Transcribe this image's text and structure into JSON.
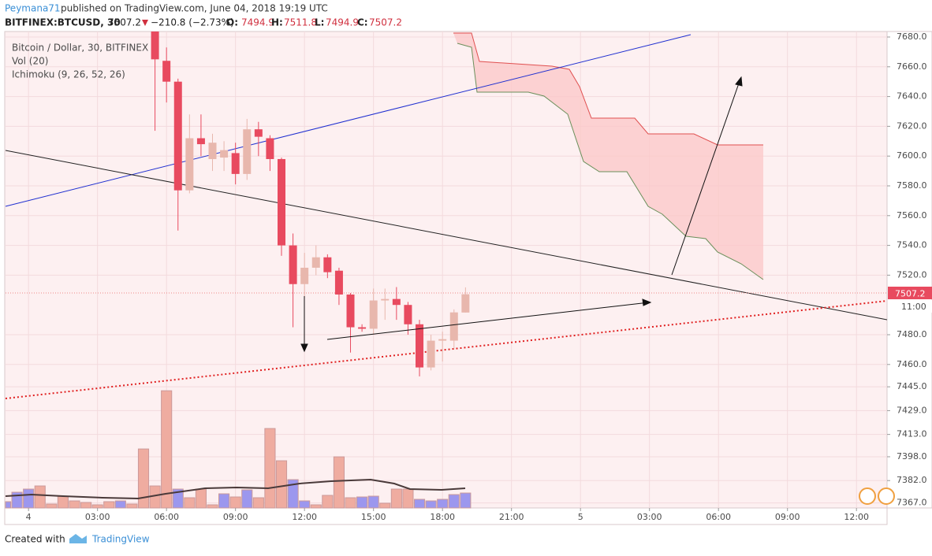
{
  "header": {
    "author": "Peymana71",
    "published": "published on TradingView.com, June 04, 2018 19:19 UTC",
    "symbol": "BITFINEX:BTCUSD, 30",
    "last": "7507.2",
    "change": "−210.8 (−2.73%)",
    "o_label": "O:",
    "o": "7494.9",
    "h_label": "H:",
    "h": "7511.8",
    "l_label": "L:",
    "l": "7494.9",
    "c_label": "C:",
    "c": "7507.2"
  },
  "chart_data": {
    "type": "candlestick",
    "legend": [
      "Bitcoin / Dollar, 30, BITFINEX",
      "Vol (20)",
      "Ichimoku (9, 26, 52, 26)"
    ],
    "x": [
      -1,
      -0.5,
      0,
      0.5,
      1,
      1.5,
      2,
      2.5,
      3,
      3.5,
      4,
      4.5,
      5,
      5.5,
      6,
      6.5,
      7,
      7.5,
      8,
      8.5,
      9,
      9.5,
      10,
      10.5,
      11,
      11.5,
      12,
      12.5,
      13,
      13.5,
      14,
      14.5,
      15,
      15.5,
      16,
      16.5,
      17,
      17.5,
      18,
      18.5,
      19
    ],
    "open": [
      null,
      null,
      null,
      null,
      null,
      null,
      null,
      null,
      null,
      null,
      null,
      null,
      null,
      7705,
      7664,
      7650,
      7577,
      7612,
      7598,
      7599,
      7602,
      7588,
      7618,
      7612,
      7598,
      7540,
      7514,
      7525,
      7532,
      7523,
      7507,
      7485,
      7484,
      7503,
      7504,
      7500,
      7487,
      7458,
      7476,
      7476,
      7494.9
    ],
    "high": [
      null,
      null,
      null,
      null,
      null,
      null,
      null,
      null,
      null,
      null,
      null,
      null,
      null,
      7712,
      7673,
      7652,
      7628,
      7628,
      7615,
      7610,
      7609,
      7625,
      7623,
      7614,
      7599,
      7548,
      7535,
      7540,
      7534,
      7525,
      7508,
      7487,
      7511,
      7511,
      7512,
      7502,
      7490,
      7480,
      7482,
      7497,
      7511.8
    ],
    "low": [
      null,
      null,
      null,
      null,
      null,
      null,
      null,
      null,
      null,
      null,
      null,
      null,
      null,
      7617,
      7636,
      7550,
      7575,
      7600,
      7590,
      7590,
      7581,
      7584,
      7600,
      7590,
      7533,
      7485,
      7505,
      7520,
      7518,
      7500,
      7468,
      7482,
      7480,
      7490,
      7490,
      7480,
      7452,
      7456,
      7462,
      7470,
      7494.9
    ],
    "close": [
      null,
      null,
      null,
      null,
      null,
      null,
      null,
      null,
      null,
      null,
      null,
      null,
      null,
      7665,
      7650,
      7577,
      7612,
      7608,
      7609,
      7604,
      7588,
      7618,
      7613,
      7598,
      7540,
      7514,
      7525,
      7532,
      7522,
      7507,
      7485,
      7484,
      7503,
      7504,
      7500,
      7487,
      7458,
      7476,
      7477,
      7495,
      7507.2
    ],
    "volume": [
      80,
      200,
      240,
      280,
      50,
      150,
      90,
      70,
      40,
      80,
      90,
      50,
      750,
      280,
      1490,
      240,
      130,
      240,
      40,
      180,
      140,
      230,
      130,
      1010,
      600,
      360,
      90,
      40,
      160,
      650,
      130,
      140,
      150,
      60,
      240,
      240,
      110,
      90,
      110,
      170,
      190
    ],
    "volume_colors": [
      "#9c97ee",
      "#9c97ee",
      "#9c97ee",
      "#efaca0",
      "#efaca0",
      "#efaca0",
      "#efaca0",
      "#efaca0",
      "#efaca0",
      "#efaca0",
      "#9c97ee",
      "#efaca0",
      "#efaca0",
      "#efaca0",
      "#efaca0",
      "#9c97ee",
      "#efaca0",
      "#efaca0",
      "#efaca0",
      "#9c97ee",
      "#efaca0",
      "#9c97ee",
      "#efaca0",
      "#efaca0",
      "#efaca0",
      "#9c97ee",
      "#9c97ee",
      "#efaca0",
      "#efaca0",
      "#efaca0",
      "#efaca0",
      "#9c97ee",
      "#9c97ee",
      "#efaca0",
      "#efaca0",
      "#efaca0",
      "#9c97ee",
      "#9c97ee",
      "#9c97ee",
      "#9c97ee",
      "#9c97ee"
    ],
    "up_color": "#e8b7ad",
    "down_color": "#e84a5f",
    "xlim": [
      -1,
      37.33
    ],
    "xticks": [
      {
        "value": 0,
        "label": "4"
      },
      {
        "value": 3,
        "label": "03:00"
      },
      {
        "value": 6,
        "label": "06:00"
      },
      {
        "value": 9,
        "label": "09:00"
      },
      {
        "value": 12,
        "label": "12:00"
      },
      {
        "value": 15,
        "label": "15:00"
      },
      {
        "value": 18,
        "label": "18:00"
      },
      {
        "value": 21,
        "label": "21:00"
      },
      {
        "value": 24,
        "label": "5"
      },
      {
        "value": 27,
        "label": "03:00"
      },
      {
        "value": 30,
        "label": "06:00"
      },
      {
        "value": 33,
        "label": "09:00"
      },
      {
        "value": 36,
        "label": "12:00"
      }
    ],
    "ylim": [
      7363.6,
      7683.7
    ],
    "yticks": [
      {
        "value": 7680,
        "label": "7680.0"
      },
      {
        "value": 7660,
        "label": "7660.0"
      },
      {
        "value": 7640,
        "label": "7640.0"
      },
      {
        "value": 7620,
        "label": "7620.0"
      },
      {
        "value": 7600,
        "label": "7600.0"
      },
      {
        "value": 7580,
        "label": "7580.0"
      },
      {
        "value": 7560,
        "label": "7560.0"
      },
      {
        "value": 7540,
        "label": "7540.0"
      },
      {
        "value": 7520,
        "label": "7520.0"
      },
      {
        "value": 7480,
        "label": "7480.0"
      },
      {
        "value": 7460,
        "label": "7460.0"
      },
      {
        "value": 7445,
        "label": "7445.0"
      },
      {
        "value": 7429,
        "label": "7429.0"
      },
      {
        "value": 7413,
        "label": "7413.0"
      },
      {
        "value": 7398,
        "label": "7398.0"
      },
      {
        "value": 7382,
        "label": "7382.0"
      },
      {
        "value": 7367,
        "label": "7367.0"
      }
    ],
    "last_price": {
      "value": 7507.2,
      "label": "7507.2"
    },
    "countdown": "11:00",
    "grid": true
  },
  "footer": {
    "created": "Created with",
    "brand": "TradingView"
  }
}
